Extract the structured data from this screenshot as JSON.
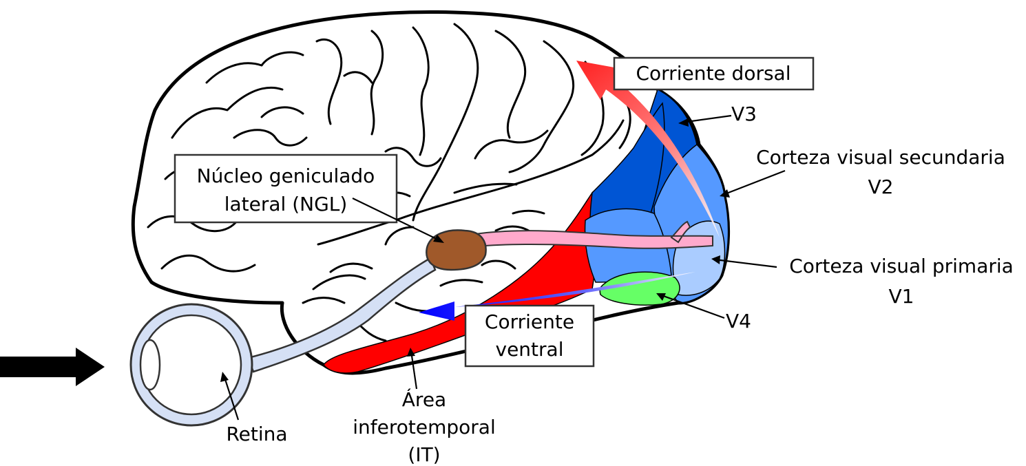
{
  "labels": {
    "dorsal_stream": "Corriente dorsal",
    "v3": "V3",
    "secondary_cortex": "Corteza visual secundaria",
    "v2": "V2",
    "lgn_line1": "Núcleo geniculado",
    "lgn_line2": "lateral (NGL)",
    "primary_cortex": "Corteza visual primaria",
    "v1": "V1",
    "ventral_line1": "Corriente",
    "ventral_line2": "ventral",
    "v4": "V4",
    "retina": "Retina",
    "it_line1": "Área",
    "it_line2": "inferotemporal",
    "it_line3": "(IT)"
  },
  "colors": {
    "v1": "#aaccff",
    "v2": "#5599ff",
    "v3": "#0055d4",
    "v4": "#66ff66",
    "inferotemporal": "#ff0000",
    "lgn": "#a0592a",
    "optic_radiation": "#ffaacc",
    "eye_and_optic_nerve": "#d5e0f5",
    "dorsal_arrow": "#ff2a2a",
    "ventral_arrow": "#0000ff",
    "input_arrow": "#000000"
  }
}
